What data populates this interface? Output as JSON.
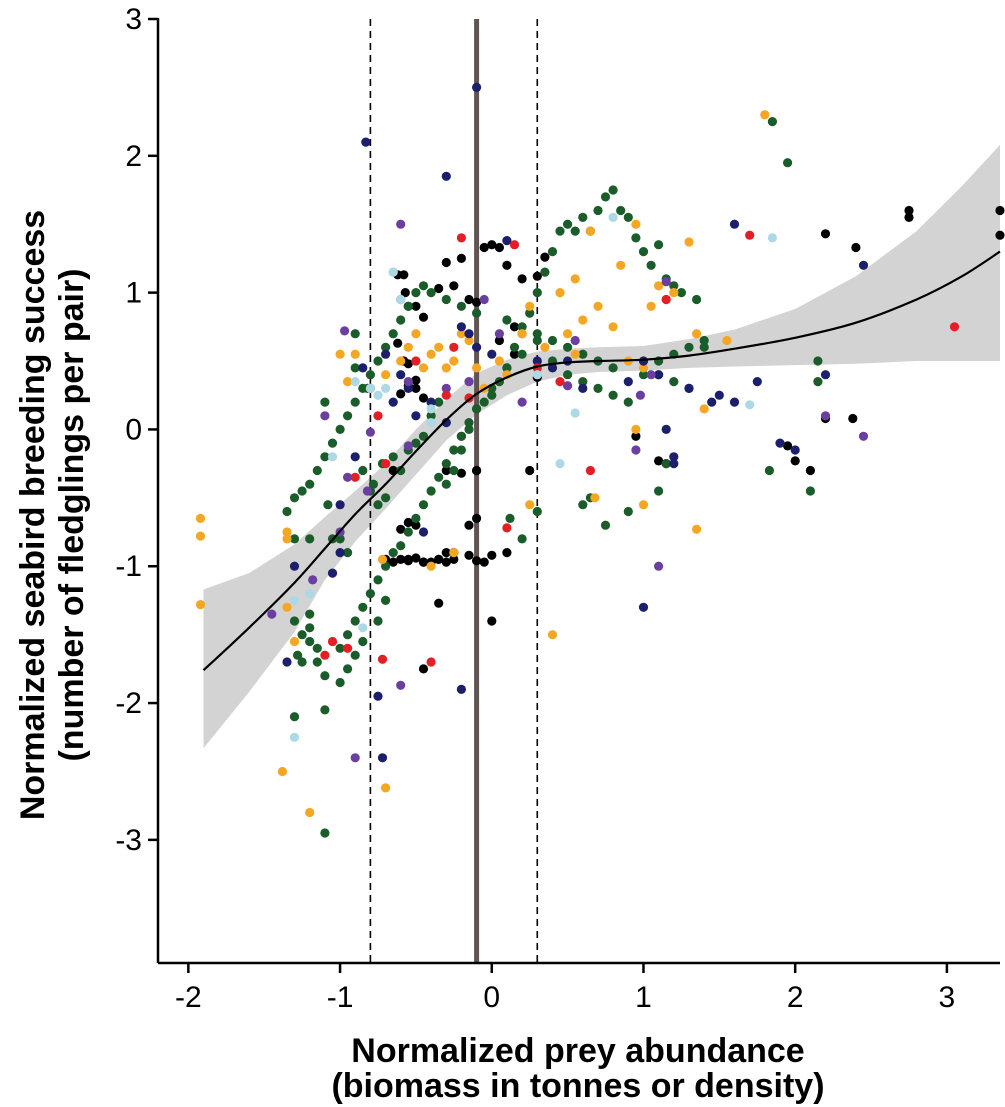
{
  "chart_data": {
    "type": "scatter",
    "xlabel": [
      "Normalized prey abundance",
      "(biomass in tonnes or density)"
    ],
    "ylabel": [
      "Normalized seabird breeding success",
      "(number of fledglings per pair)"
    ],
    "xlim": [
      -2.2,
      3.35
    ],
    "ylim": [
      -3.9,
      3.0
    ],
    "x_ticks": [
      "-2",
      "-1",
      "0",
      "1",
      "2",
      "3"
    ],
    "y_ticks": [
      "-3",
      "-2",
      "-1",
      "0",
      "1",
      "2",
      "3"
    ],
    "x_tick_values": [
      -2,
      -1,
      0,
      1,
      2,
      3
    ],
    "y_tick_values": [
      -3,
      -2,
      -1,
      0,
      1,
      2,
      3
    ],
    "grid": false,
    "reference_lines": [
      {
        "x": -0.1,
        "style": "solid",
        "color": "#5f5451"
      },
      {
        "x": -0.8,
        "style": "dashed",
        "color": "#000000"
      },
      {
        "x": 0.3,
        "style": "dashed",
        "color": "#000000"
      }
    ],
    "fit_line": {
      "color": "#000000",
      "ci_color": "#d3d3d3",
      "x": [
        -1.9,
        -1.6,
        -1.3,
        -1.1,
        -0.9,
        -0.7,
        -0.5,
        -0.3,
        -0.1,
        0.1,
        0.3,
        0.5,
        0.7,
        1.0,
        1.3,
        1.6,
        2.0,
        2.4,
        2.8,
        3.1,
        3.35
      ],
      "y": [
        -1.76,
        -1.45,
        -1.12,
        -0.87,
        -0.62,
        -0.4,
        -0.16,
        0.07,
        0.26,
        0.38,
        0.46,
        0.49,
        0.5,
        0.51,
        0.54,
        0.59,
        0.67,
        0.78,
        0.95,
        1.12,
        1.3
      ],
      "lower": [
        -2.33,
        -1.92,
        -1.48,
        -1.1,
        -0.82,
        -0.58,
        -0.33,
        -0.08,
        0.11,
        0.25,
        0.35,
        0.4,
        0.42,
        0.43,
        0.45,
        0.46,
        0.47,
        0.48,
        0.5,
        0.5,
        0.5
      ],
      "upper": [
        -1.17,
        -1.05,
        -0.84,
        -0.64,
        -0.45,
        -0.25,
        0.0,
        0.22,
        0.41,
        0.51,
        0.57,
        0.59,
        0.6,
        0.61,
        0.66,
        0.73,
        0.88,
        1.12,
        1.45,
        1.78,
        2.08
      ]
    },
    "series": [
      {
        "color": "#000000",
        "x": [
          -0.62,
          -0.58,
          -0.57,
          -0.55,
          -0.5,
          -0.45,
          -0.62,
          -0.58,
          -0.55,
          -0.5,
          -0.6,
          -0.55,
          -0.5,
          -0.45,
          -0.35,
          -0.3,
          -0.25,
          -0.2,
          -0.15,
          -0.1,
          -0.05,
          0.0,
          0.05,
          0.1,
          0.15,
          0.2,
          0.3,
          0.35,
          -0.6,
          -0.55,
          -0.5,
          -0.45,
          -0.4,
          -0.3,
          -0.25,
          -0.15,
          -0.1,
          -0.05,
          0.0,
          -0.5,
          -0.35,
          -0.3,
          -0.2,
          -0.1,
          -0.65,
          -0.7,
          -0.6,
          -0.55,
          0.05,
          0.15,
          0.25,
          -0.55,
          -0.45,
          -0.35,
          -0.3,
          -0.25,
          -0.15,
          -0.1,
          0.0,
          0.1,
          0.3,
          -0.45,
          -0.65,
          -0.2,
          0.95,
          1.1,
          1.15,
          1.95,
          2.0,
          2.1,
          2.2,
          2.4,
          2.75,
          2.75,
          3.35,
          3.35,
          2.2,
          2.38,
          -0.1,
          -0.35
        ],
        "y": [
          1.13,
          1.13,
          1.0,
          0.9,
          0.9,
          0.82,
          0.63,
          0.5,
          0.48,
          0.36,
          0.26,
          0.32,
          0.3,
          0.23,
          1.03,
          1.22,
          1.05,
          1.25,
          0.95,
          0.93,
          1.33,
          1.35,
          1.33,
          1.2,
          0.75,
          1.1,
          1.12,
          1.26,
          -0.73,
          -0.68,
          -0.7,
          -0.97,
          -0.97,
          -0.9,
          -0.95,
          -0.7,
          -0.65,
          -0.97,
          -0.92,
          -0.94,
          -0.95,
          -0.3,
          -0.32,
          -0.3,
          -0.97,
          -0.95,
          -0.95,
          -0.95,
          0.65,
          0.55,
          -0.3,
          -0.96,
          -0.97,
          -0.95,
          -0.97,
          -0.9,
          -0.92,
          -0.96,
          -1.4,
          -0.9,
          0.38,
          -1.75,
          -0.3,
          -0.05,
          -0.05,
          -0.23,
          -0.25,
          -0.12,
          -0.23,
          -0.3,
          0.08,
          1.33,
          1.55,
          1.6,
          1.6,
          1.42,
          1.43,
          0.08,
          -0.3,
          -1.27
        ]
      },
      {
        "color": "#1a5c2a",
        "x": [
          -1.3,
          -1.28,
          -1.25,
          -1.2,
          -1.2,
          -1.15,
          -1.1,
          -1.08,
          -1.05,
          -1.0,
          -0.95,
          -0.9,
          -0.85,
          -0.82,
          -0.8,
          -0.78,
          -0.75,
          -0.72,
          -0.7,
          -0.65,
          -0.6,
          -0.55,
          -0.5,
          -0.45,
          -0.4,
          -0.35,
          -0.3,
          -0.25,
          -0.2,
          -0.15,
          -0.1,
          -0.05,
          0.0,
          0.05,
          0.1,
          0.15,
          0.2,
          0.25,
          0.3,
          0.35,
          0.4,
          0.45,
          0.5,
          0.55,
          0.6,
          0.65,
          0.7,
          0.75,
          0.8,
          0.85,
          0.9,
          0.95,
          1.0,
          1.05,
          1.1,
          1.15,
          1.2,
          1.25,
          1.35,
          1.4,
          1.85,
          1.95,
          2.15,
          -1.3,
          -1.25,
          -1.2,
          -1.15,
          -1.1,
          -1.0,
          -0.95,
          -0.9,
          -0.85,
          -0.8,
          -0.75,
          -0.7,
          -0.65,
          -0.6,
          -0.55,
          -0.5,
          -0.45,
          -0.4,
          -0.35,
          -0.3,
          -0.25,
          -0.2,
          -0.15,
          -0.1,
          0.0,
          0.1,
          0.2,
          0.3,
          0.4,
          0.5,
          0.6,
          0.7,
          0.8,
          0.9,
          1.0,
          1.1,
          1.2,
          1.3,
          1.4,
          -1.35,
          -1.3,
          -1.25,
          -1.2,
          -1.15,
          -1.1,
          -1.05,
          -1.0,
          -0.95,
          -0.9,
          -0.85,
          -0.8,
          -0.75,
          -0.7,
          -0.65,
          -0.6,
          -0.55,
          -0.5,
          -0.45,
          -0.4,
          -0.3,
          -0.2,
          -0.1,
          0.1,
          0.2,
          0.3,
          0.4,
          0.5,
          0.6,
          0.7,
          0.8,
          1.1,
          1.2,
          1.3,
          2.15,
          2.1,
          1.83,
          -1.1,
          -1.0,
          -0.95,
          -0.9,
          -0.85,
          -0.75,
          -0.7,
          0.12,
          0.2,
          0.3,
          0.6,
          0.65,
          0.75,
          0.9,
          1.1,
          1.15,
          -1.3,
          -1.2,
          -0.9,
          -1.1
        ],
        "y": [
          -0.8,
          -1.65,
          -1.7,
          -0.8,
          -1.45,
          -1.6,
          0.2,
          -0.55,
          -0.8,
          -0.8,
          -0.9,
          0.45,
          -0.3,
          0.3,
          -0.45,
          -0.4,
          -0.55,
          -0.25,
          -0.5,
          -0.2,
          -0.3,
          -0.15,
          -0.1,
          -0.05,
          0.1,
          0.2,
          -0.4,
          -0.3,
          -0.15,
          0.0,
          0.15,
          0.2,
          0.25,
          0.35,
          0.45,
          0.6,
          0.7,
          0.85,
          1.0,
          1.15,
          1.3,
          1.45,
          1.5,
          1.45,
          1.55,
          1.45,
          1.6,
          1.7,
          1.75,
          1.6,
          1.55,
          1.4,
          1.3,
          1.2,
          1.35,
          1.1,
          1.05,
          1.0,
          0.95,
          0.6,
          2.25,
          1.95,
          0.5,
          -1.4,
          -1.5,
          -1.55,
          -1.7,
          -1.8,
          -1.6,
          -1.5,
          -1.4,
          -1.3,
          -1.2,
          -1.1,
          -1.0,
          -0.9,
          -0.85,
          -0.75,
          -0.65,
          -0.55,
          -0.45,
          -0.35,
          -0.25,
          -0.15,
          -0.05,
          0.05,
          0.15,
          0.3,
          0.45,
          0.55,
          0.65,
          0.5,
          0.4,
          0.35,
          0.3,
          0.25,
          0.2,
          0.4,
          0.5,
          0.55,
          0.6,
          0.65,
          -0.6,
          -0.5,
          -0.45,
          -0.4,
          -0.3,
          -0.2,
          -0.1,
          0.0,
          0.1,
          0.2,
          0.3,
          0.4,
          0.5,
          0.6,
          0.7,
          0.8,
          0.9,
          1.0,
          1.05,
          1.0,
          0.95,
          0.9,
          0.85,
          0.8,
          0.75,
          0.7,
          0.65,
          0.6,
          0.55,
          0.5,
          0.45,
          0.4,
          0.35,
          0.3,
          0.35,
          -0.45,
          -0.3,
          -2.05,
          -1.85,
          -1.75,
          -1.65,
          -1.55,
          -1.4,
          -1.25,
          -0.65,
          -0.8,
          -0.6,
          -0.55,
          -0.5,
          -0.7,
          -0.6,
          -0.45,
          -0.25,
          -2.1,
          -1.35,
          0.7,
          -2.95
        ]
      },
      {
        "color": "#f5a623",
        "x": [
          -1.92,
          -1.92,
          -1.92,
          -1.35,
          -1.35,
          -1.3,
          -1.35,
          -1.2,
          -1.0,
          -0.95,
          -0.9,
          -0.8,
          -0.7,
          -0.65,
          -0.6,
          -0.55,
          -0.5,
          -0.45,
          -0.4,
          -0.35,
          -0.3,
          -0.25,
          -0.2,
          -0.15,
          -0.1,
          -0.05,
          0.05,
          0.1,
          0.2,
          0.25,
          0.35,
          0.45,
          0.5,
          0.55,
          0.6,
          0.65,
          0.7,
          0.8,
          0.85,
          0.9,
          0.95,
          1.0,
          1.05,
          1.1,
          1.15,
          1.2,
          1.3,
          1.35,
          1.4,
          1.8,
          -0.7,
          0.4,
          -1.38,
          -0.72,
          0.95,
          0.55,
          1.0,
          1.35,
          0.25,
          -0.25,
          -0.4,
          0.68,
          1.55
        ],
        "y": [
          -0.65,
          -0.78,
          -1.28,
          -0.75,
          -0.8,
          -1.55,
          -1.3,
          -2.8,
          0.55,
          0.35,
          0.55,
          0.3,
          0.4,
          1.15,
          0.5,
          0.6,
          0.7,
          0.45,
          0.55,
          0.6,
          0.45,
          0.5,
          0.7,
          0.65,
          0.45,
          0.3,
          0.5,
          0.4,
          0.7,
          0.9,
          0.6,
          1.0,
          0.7,
          1.1,
          0.8,
          1.45,
          0.9,
          0.75,
          1.2,
          0.5,
          1.5,
          0.45,
          0.9,
          1.05,
          0.95,
          1.0,
          1.37,
          0.7,
          0.15,
          2.3,
          -2.62,
          -1.5,
          -2.5,
          -0.95,
          0.0,
          0.55,
          -0.55,
          -0.73,
          -0.55,
          -0.9,
          -1.0,
          -0.5,
          0.65
        ]
      },
      {
        "color": "#1c1f6b",
        "x": [
          -0.83,
          -0.3,
          -0.1,
          0.1,
          -1.35,
          -1.0,
          -0.9,
          -0.85,
          -0.7,
          -0.65,
          -0.6,
          -0.55,
          -0.5,
          -0.4,
          -0.3,
          -0.2,
          -0.15,
          -0.1,
          0.0,
          0.3,
          0.4,
          0.5,
          0.6,
          0.9,
          1.0,
          1.1,
          1.3,
          1.5,
          1.6,
          1.9,
          2.0,
          2.2,
          2.45,
          -1.3,
          -0.75,
          -0.72,
          -0.2,
          -1.05,
          -1.0,
          -0.45,
          1.6,
          1.75,
          1.15,
          1.2,
          1.45,
          1.0,
          1.2
        ],
        "y": [
          2.1,
          1.85,
          2.5,
          1.38,
          -1.7,
          -0.9,
          -0.2,
          0.45,
          0.55,
          0.2,
          0.4,
          0.3,
          0.1,
          0.2,
          0.05,
          0.75,
          0.7,
          0.6,
          0.55,
          0.5,
          0.45,
          0.5,
          0.3,
          0.35,
          0.5,
          0.4,
          0.3,
          0.25,
          0.2,
          -0.1,
          -0.15,
          0.4,
          1.2,
          -1.0,
          -1.95,
          -2.4,
          -1.9,
          -1.05,
          -0.55,
          -0.75,
          1.5,
          0.35,
          0.0,
          -0.2,
          0.2,
          -1.3,
          -0.25
        ]
      },
      {
        "color": "#6b3fa0",
        "x": [
          -0.97,
          -1.1,
          -0.6,
          -0.6,
          -0.3,
          -0.05,
          0.05,
          -0.95,
          -0.82,
          -0.9,
          0.5,
          0.55,
          0.95,
          1.05,
          1.15,
          2.2,
          2.45,
          -0.55,
          -1.45,
          -0.8,
          -0.6,
          1.1,
          0.2,
          -0.15,
          -1.18,
          -1.0,
          0.98,
          -0.55
        ],
        "y": [
          0.72,
          0.1,
          1.5,
          0.95,
          0.3,
          0.95,
          0.7,
          -0.35,
          -0.45,
          -2.4,
          0.32,
          0.65,
          -0.15,
          0.4,
          1.08,
          0.1,
          -0.05,
          0.35,
          -1.35,
          -0.02,
          -1.87,
          -1.0,
          0.2,
          0.35,
          -1.1,
          -0.75,
          0.25,
          -0.12
        ]
      },
      {
        "color": "#e31e24",
        "x": [
          -0.2,
          0.15,
          -0.9,
          -0.8,
          -0.75,
          -0.5,
          -0.3,
          -0.15,
          -0.25,
          0.3,
          0.65,
          0.45,
          -1.1,
          -0.95,
          -1.05,
          -0.4,
          -0.72,
          1.7,
          3.05,
          -0.7,
          0.1,
          1.15
        ],
        "y": [
          1.4,
          1.35,
          -0.35,
          0.3,
          0.1,
          0.5,
          0.25,
          0.23,
          0.6,
          0.45,
          -0.3,
          0.35,
          -1.65,
          -1.6,
          -1.55,
          -1.7,
          -1.68,
          1.42,
          0.75,
          -0.25,
          -0.72,
          0.95
        ]
      },
      {
        "color": "#add8e6",
        "x": [
          -0.65,
          -0.6,
          -0.7,
          -0.75,
          -0.9,
          -1.05,
          -0.4,
          -0.4,
          -1.3,
          -1.2,
          -0.85,
          0.45,
          0.55,
          0.8,
          0.3,
          1.7,
          1.85,
          -1.3,
          -0.8
        ],
        "y": [
          1.15,
          0.95,
          0.3,
          0.25,
          0.35,
          -0.2,
          0.15,
          0.05,
          -2.25,
          -1.2,
          -1.45,
          -0.25,
          0.12,
          1.55,
          0.4,
          0.18,
          1.4,
          -1.25,
          0.3
        ]
      }
    ]
  }
}
